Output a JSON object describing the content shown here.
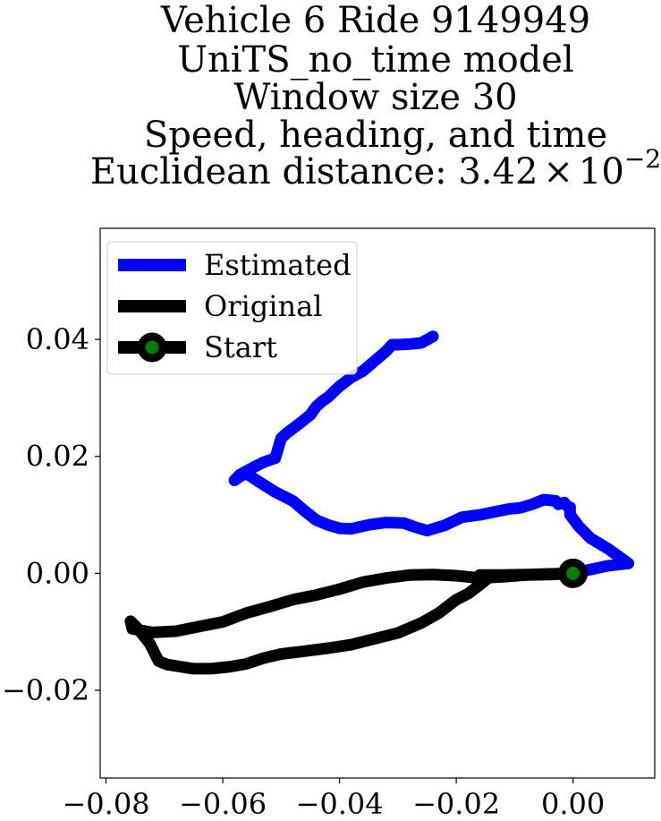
{
  "chart_data": {
    "type": "line",
    "title_lines": [
      "Vehicle 6 Ride 9149949",
      "UniTS_no_time model",
      "Window size 30",
      "Speed, heading, and time",
      "Euclidean distance: "
    ],
    "distance_mantissa": "3.42",
    "distance_times": "×",
    "distance_base": "10",
    "distance_exponent": "−2",
    "xlim": [
      -0.081,
      0.014
    ],
    "ylim": [
      -0.035,
      0.059
    ],
    "xticks": [
      -0.08,
      -0.06,
      -0.04,
      -0.02,
      0.0
    ],
    "xtick_labels": [
      "−0.08",
      "−0.06",
      "−0.04",
      "−0.02",
      "0.00"
    ],
    "yticks": [
      -0.02,
      0.0,
      0.02,
      0.04
    ],
    "ytick_labels": [
      "−0.02",
      "0.00",
      "0.02",
      "0.04"
    ],
    "grid": false,
    "legend_position": "top-left",
    "series": [
      {
        "name": "Estimated",
        "color": "#0000ff",
        "x": [
          0.0,
          0.006,
          0.0095,
          0.006,
          0.003,
          0.001,
          -0.0005,
          -0.0005,
          -0.001,
          -0.0015,
          -0.0025,
          -0.003,
          -0.005,
          -0.007,
          -0.009,
          -0.011,
          -0.013,
          -0.016,
          -0.019,
          -0.022,
          -0.025,
          -0.027,
          -0.029,
          -0.032,
          -0.035,
          -0.038,
          -0.04,
          -0.042,
          -0.044,
          -0.046,
          -0.048,
          -0.051,
          -0.054,
          -0.056,
          -0.057,
          -0.058,
          -0.057,
          -0.055,
          -0.053,
          -0.051,
          -0.05,
          -0.049,
          -0.047,
          -0.045,
          -0.044,
          -0.043,
          -0.042,
          -0.04,
          -0.038,
          -0.036,
          -0.034,
          -0.032,
          -0.031,
          -0.03,
          -0.028,
          -0.026,
          -0.024
        ],
        "y": [
          0.0,
          0.0013,
          0.0017,
          0.0042,
          0.006,
          0.008,
          0.01,
          0.0113,
          0.0115,
          0.0121,
          0.0118,
          0.0124,
          0.0126,
          0.0118,
          0.0112,
          0.011,
          0.0106,
          0.01,
          0.0096,
          0.0082,
          0.0073,
          0.0079,
          0.0086,
          0.0087,
          0.0083,
          0.0076,
          0.0077,
          0.0083,
          0.0091,
          0.0107,
          0.0124,
          0.0139,
          0.0158,
          0.0171,
          0.0166,
          0.0159,
          0.0169,
          0.018,
          0.019,
          0.0197,
          0.0231,
          0.024,
          0.0255,
          0.0271,
          0.0285,
          0.0294,
          0.0301,
          0.032,
          0.0335,
          0.0346,
          0.0363,
          0.038,
          0.0391,
          0.0391,
          0.0392,
          0.0394,
          0.0405
        ]
      },
      {
        "name": "Original",
        "color": "#000000",
        "x": [
          0.0,
          -0.004,
          -0.008,
          -0.012,
          -0.016,
          -0.02,
          -0.024,
          -0.028,
          -0.032,
          -0.036,
          -0.04,
          -0.044,
          -0.048,
          -0.052,
          -0.056,
          -0.06,
          -0.064,
          -0.068,
          -0.072,
          -0.0755,
          -0.0758,
          -0.0745,
          -0.0725,
          -0.071,
          -0.0695,
          -0.065,
          -0.062,
          -0.059,
          -0.056,
          -0.053,
          -0.05,
          -0.046,
          -0.042,
          -0.038,
          -0.034,
          -0.03,
          -0.026,
          -0.023,
          -0.02,
          -0.018,
          -0.016,
          -0.0145,
          -0.016,
          -0.012,
          -0.008,
          -0.004,
          0.0
        ],
        "y": [
          0.0,
          -0.0002,
          -0.0003,
          -0.0006,
          -0.0008,
          -0.0004,
          -0.0002,
          -0.0003,
          -0.0008,
          -0.0015,
          -0.0027,
          -0.0037,
          -0.0045,
          -0.0057,
          -0.0068,
          -0.0083,
          -0.0091,
          -0.0099,
          -0.0101,
          -0.0095,
          -0.0082,
          -0.0095,
          -0.012,
          -0.015,
          -0.0156,
          -0.0163,
          -0.0163,
          -0.016,
          -0.0155,
          -0.0145,
          -0.0138,
          -0.0133,
          -0.0128,
          -0.0122,
          -0.0112,
          -0.0102,
          -0.0085,
          -0.0068,
          -0.0045,
          -0.0035,
          -0.002,
          -0.0008,
          -0.0003,
          -0.0003,
          -0.0002,
          -0.0001,
          0.0
        ]
      }
    ],
    "start_point": {
      "name": "Start",
      "x": 0.0,
      "y": 0.0,
      "marker_color": "#008000",
      "edge_color": "#000000"
    }
  }
}
